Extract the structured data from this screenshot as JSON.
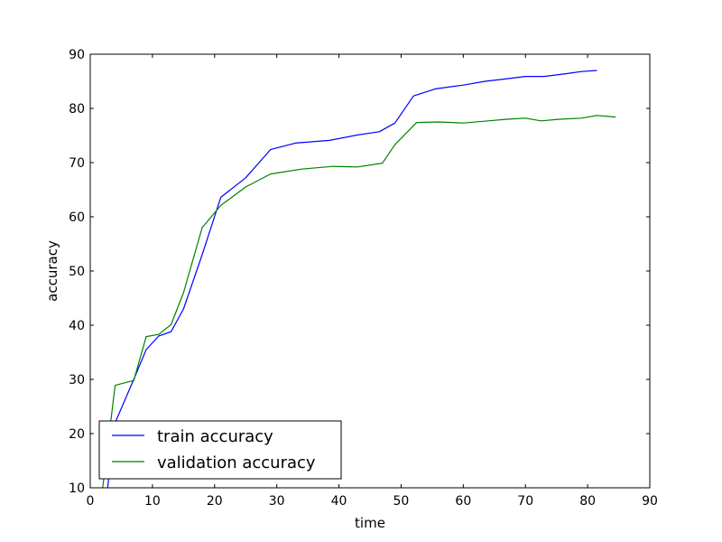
{
  "chart_data": {
    "type": "line",
    "title": "",
    "xlabel": "time",
    "ylabel": "accuracy",
    "xlim": [
      0,
      90
    ],
    "ylim": [
      10,
      90
    ],
    "xticks": [
      0,
      10,
      20,
      30,
      40,
      50,
      60,
      70,
      80,
      90
    ],
    "yticks": [
      10,
      20,
      30,
      40,
      50,
      60,
      70,
      80,
      90
    ],
    "grid": false,
    "legend_position": "lower-left",
    "series": [
      {
        "name": "train accuracy",
        "color": "#0000ff",
        "points": [
          [
            2.0,
            2.0
          ],
          [
            4.0,
            22.0
          ],
          [
            7.0,
            30.0
          ],
          [
            9.0,
            35.5
          ],
          [
            11.0,
            38.0
          ],
          [
            13.0,
            38.8
          ],
          [
            15.0,
            43.0
          ],
          [
            18.0,
            53.0
          ],
          [
            21.0,
            63.6
          ],
          [
            25.0,
            67.2
          ],
          [
            29.0,
            72.4
          ],
          [
            33.0,
            73.6
          ],
          [
            38.5,
            74.1
          ],
          [
            43.0,
            75.1
          ],
          [
            46.5,
            75.7
          ],
          [
            49.0,
            77.3
          ],
          [
            52.0,
            82.3
          ],
          [
            55.5,
            83.6
          ],
          [
            60.0,
            84.3
          ],
          [
            63.5,
            85.0
          ],
          [
            66.5,
            85.4
          ],
          [
            70.0,
            85.9
          ],
          [
            73.0,
            85.9
          ],
          [
            76.5,
            86.4
          ],
          [
            79.0,
            86.8
          ],
          [
            81.5,
            87.0
          ]
        ]
      },
      {
        "name": "validation accuracy",
        "color": "#008000",
        "points": [
          [
            2.0,
            10.0
          ],
          [
            4.0,
            28.9
          ],
          [
            7.0,
            29.8
          ],
          [
            9.0,
            37.9
          ],
          [
            11.0,
            38.3
          ],
          [
            13.0,
            40.1
          ],
          [
            15.0,
            46.0
          ],
          [
            18.0,
            58.0
          ],
          [
            21.0,
            62.1
          ],
          [
            25.0,
            65.5
          ],
          [
            29.0,
            67.9
          ],
          [
            34.0,
            68.8
          ],
          [
            39.0,
            69.3
          ],
          [
            43.0,
            69.2
          ],
          [
            47.0,
            69.9
          ],
          [
            49.0,
            73.3
          ],
          [
            52.5,
            77.4
          ],
          [
            56.0,
            77.5
          ],
          [
            60.0,
            77.3
          ],
          [
            64.0,
            77.7
          ],
          [
            67.0,
            78.0
          ],
          [
            70.0,
            78.2
          ],
          [
            72.5,
            77.7
          ],
          [
            75.5,
            78.0
          ],
          [
            79.0,
            78.2
          ],
          [
            81.5,
            78.7
          ],
          [
            84.5,
            78.4
          ]
        ]
      }
    ]
  }
}
